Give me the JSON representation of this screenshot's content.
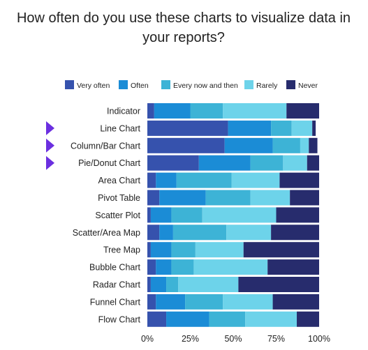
{
  "chart_data": {
    "type": "bar",
    "orientation": "horizontal",
    "stacked": true,
    "title_lines": [
      "How often do you use these charts to visualize data in",
      "your reports?"
    ],
    "categories": [
      "Indicator",
      "Line Chart",
      "Column/Bar Chart",
      "Pie/Donut Chart",
      "Area Chart",
      "Pivot Table",
      "Scatter Plot",
      "Scatter/Area Map",
      "Tree Map",
      "Bubble Chart",
      "Radar Chart",
      "Funnel Chart",
      "Flow Chart"
    ],
    "highlighted": [
      "Line Chart",
      "Column/Bar Chart",
      "Pie/Donut Chart"
    ],
    "series": [
      {
        "name": "Very often",
        "color": "#3652ad",
        "values": [
          4,
          47,
          45,
          30,
          5,
          7,
          2,
          7,
          2,
          5,
          2,
          5,
          11
        ]
      },
      {
        "name": "Often",
        "color": "#1b8cd6",
        "values": [
          21,
          25,
          28,
          30,
          12,
          27,
          12,
          8,
          12,
          9,
          9,
          17,
          25
        ]
      },
      {
        "name": "Every now and then",
        "color": "#3db3d6",
        "values": [
          19,
          12,
          16,
          19,
          32,
          26,
          18,
          31,
          14,
          13,
          7,
          22,
          21
        ]
      },
      {
        "name": "Rarely",
        "color": "#6dd3ea",
        "values": [
          37,
          12,
          5,
          14,
          28,
          23,
          43,
          26,
          28,
          43,
          35,
          29,
          30
        ]
      },
      {
        "name": "Never",
        "color": "#272c6d",
        "values": [
          19,
          2,
          5,
          7,
          23,
          17,
          25,
          28,
          44,
          30,
          47,
          27,
          13
        ]
      }
    ],
    "xaxis_ticks": [
      "0%",
      "25%",
      "50%",
      "75%",
      "100%"
    ],
    "xlim": [
      0,
      100
    ],
    "grid": false,
    "legend_position": "top"
  }
}
